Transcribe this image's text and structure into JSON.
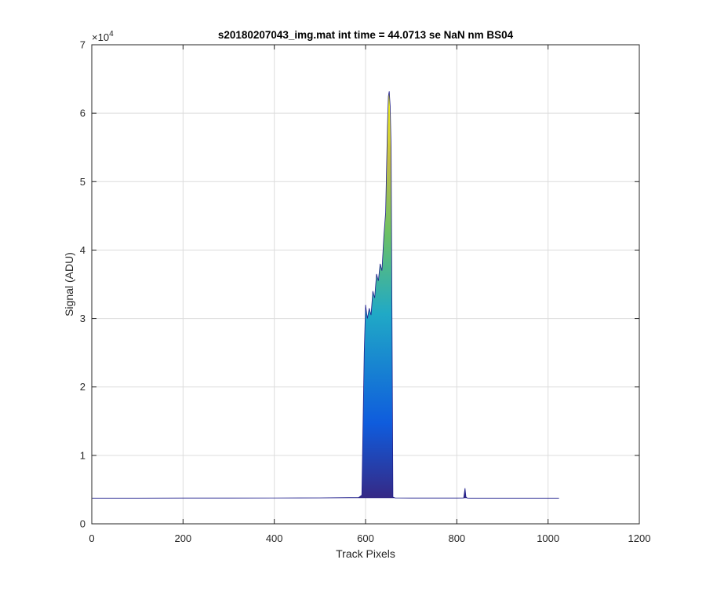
{
  "chart_data": {
    "type": "area",
    "title": "s20180207043_img.mat int time = 44.0713 se  NaN nm BS04",
    "xlabel": "Track Pixels",
    "ylabel": "Signal (ADU)",
    "xlim": [
      0,
      1200
    ],
    "ylim": [
      0,
      70000
    ],
    "y_exponent_label": "×10",
    "y_exponent_power": "4",
    "xticks": [
      0,
      200,
      400,
      600,
      800,
      1000,
      1200
    ],
    "xtick_labels": [
      "0",
      "200",
      "400",
      "600",
      "800",
      "1000",
      "1200"
    ],
    "yticks": [
      0,
      10000,
      20000,
      30000,
      40000,
      50000,
      60000,
      70000
    ],
    "ytick_labels": [
      "0",
      "1",
      "2",
      "3",
      "4",
      "5",
      "6",
      "7"
    ],
    "grid": true,
    "colormap": "parula",
    "colors": {
      "low": "#352a87",
      "mid": "#0f5cdd",
      "cyan": "#20a9c6",
      "green": "#6dc164",
      "high": "#f9fb0e",
      "baseline": "#1f1e8c"
    },
    "series": [
      {
        "x": [
          1,
          100,
          200,
          300,
          400,
          500,
          585,
          592,
          597,
          600,
          604,
          608,
          612,
          616,
          620,
          624,
          628,
          632,
          636,
          640,
          644,
          646,
          648,
          650,
          652,
          654,
          656,
          660,
          665,
          700,
          800,
          815,
          818,
          820,
          823,
          830,
          900,
          1000,
          1024
        ],
        "y": [
          3750,
          3750,
          3760,
          3760,
          3780,
          3790,
          3850,
          4200,
          25000,
          32000,
          30000,
          31500,
          30500,
          34000,
          33000,
          36500,
          35500,
          38000,
          37000,
          42000,
          45500,
          52000,
          58000,
          62500,
          63200,
          61000,
          55000,
          3900,
          3780,
          3760,
          3760,
          3780,
          5200,
          3900,
          3760,
          3750,
          3750,
          3750,
          3750
        ]
      }
    ]
  }
}
